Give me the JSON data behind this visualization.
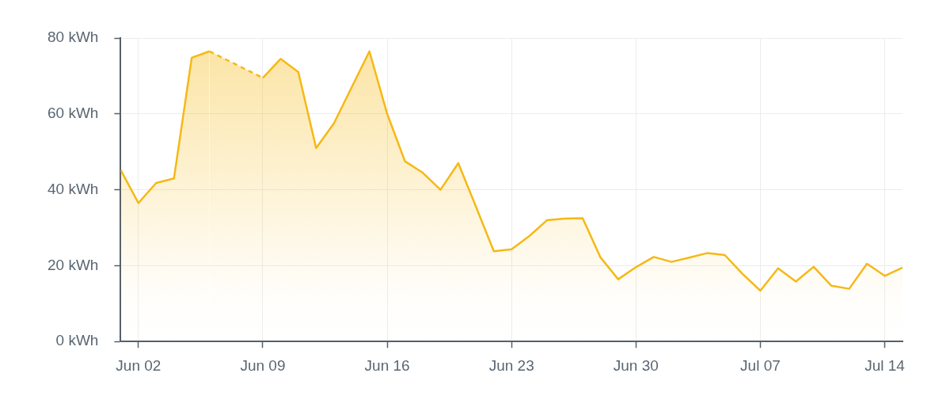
{
  "chart_data": {
    "type": "area",
    "x": [
      "--06-01",
      "--06-02",
      "--06-03",
      "--06-04",
      "--06-05",
      "--06-06",
      "--06-07",
      "--06-08",
      "--06-09",
      "--06-10",
      "--06-11",
      "--06-12",
      "--06-13",
      "--06-14",
      "--06-15",
      "--06-16",
      "--06-17",
      "--06-18",
      "--06-19",
      "--06-20",
      "--06-21",
      "--06-22",
      "--06-23",
      "--06-24",
      "--06-25",
      "--06-26",
      "--06-27",
      "--06-28",
      "--06-29",
      "--06-30",
      "--07-01",
      "--07-02",
      "--07-03",
      "--07-04",
      "--07-05",
      "--07-06",
      "--07-07",
      "--07-08",
      "--07-09",
      "--07-10",
      "--07-11",
      "--07-12",
      "--07-13",
      "--07-14",
      "--07-15"
    ],
    "series": [
      {
        "color": "#f5b916",
        "values": [
          45.2,
          36.5,
          41.8,
          43.0,
          74.8,
          76.5,
          null,
          null,
          69.5,
          74.5,
          71.0,
          51.0,
          57.5,
          67.0,
          76.5,
          60.0,
          47.5,
          44.5,
          40.0,
          47.0,
          35.5,
          23.8,
          24.3,
          27.8,
          32.0,
          32.4,
          32.5,
          22.2,
          16.4,
          19.6,
          22.3,
          21.0,
          22.1,
          23.3,
          22.8,
          17.8,
          13.4,
          19.3,
          15.8,
          19.7,
          14.7,
          13.9,
          20.5,
          17.3,
          19.5
        ]
      }
    ],
    "xlim": [
      "--06-01",
      "--07-15"
    ],
    "xticks": [
      {
        "value": "--06-02",
        "label": "Jun 02"
      },
      {
        "value": "--06-09",
        "label": "Jun 09"
      },
      {
        "value": "--06-16",
        "label": "Jun 16"
      },
      {
        "value": "--06-23",
        "label": "Jun 23"
      },
      {
        "value": "--06-30",
        "label": "Jun 30"
      },
      {
        "value": "--07-07",
        "label": "Jul 07"
      },
      {
        "value": "--07-14",
        "label": "Jul 14"
      }
    ],
    "ylim": [
      0,
      80
    ],
    "yticks": [
      {
        "value": 0,
        "label": "0 kWh"
      },
      {
        "value": 20,
        "label": "20 kWh"
      },
      {
        "value": 40,
        "label": "40 kWh"
      },
      {
        "value": 60,
        "label": "60 kWh"
      },
      {
        "value": 80,
        "label": "80 kWh"
      }
    ],
    "grid": true,
    "legend": false
  }
}
